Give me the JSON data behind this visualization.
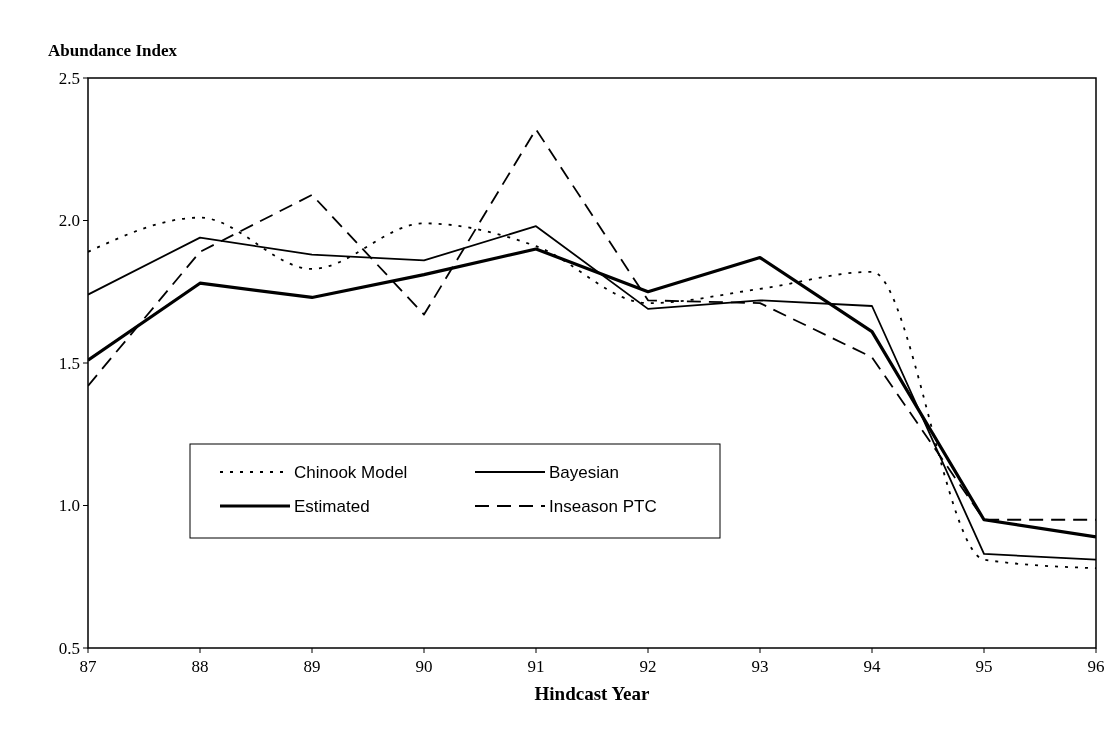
{
  "chart_data": {
    "type": "line",
    "xlabel": "Hindcast Year",
    "ylabel": "Abundance Index",
    "x": [
      87,
      88,
      89,
      90,
      91,
      92,
      93,
      94,
      95,
      96
    ],
    "xlim": [
      87,
      96
    ],
    "xticks": [
      87,
      88,
      89,
      90,
      91,
      92,
      93,
      94,
      95,
      96
    ],
    "ylim": [
      0.5,
      2.5
    ],
    "yticks": [
      {
        "value": 0.5,
        "label": "0.5"
      },
      {
        "value": 1,
        "label": "1.0"
      },
      {
        "value": 1.5,
        "label": "1.5"
      },
      {
        "value": 2,
        "label": "2.0"
      },
      {
        "value": 2.5,
        "label": "2.5"
      }
    ],
    "grid": false,
    "legend": "bottom left",
    "marker": "none",
    "series": [
      {
        "name": "Chinook Model",
        "color": "#000000",
        "line_style": "dotted",
        "values": [
          1.89,
          2.01,
          1.83,
          1.99,
          1.91,
          1.71,
          1.76,
          1.82,
          0.81,
          0.78
        ]
      },
      {
        "name": "Bayesian",
        "color": "#000000",
        "line_style": "solid",
        "values": [
          1.74,
          1.94,
          1.88,
          1.86,
          1.98,
          1.69,
          1.72,
          1.7,
          0.83,
          0.81
        ]
      },
      {
        "name": "Estimated",
        "color": "#000000",
        "line_style": "solid",
        "values": [
          1.51,
          1.78,
          1.73,
          1.81,
          1.9,
          1.75,
          1.87,
          1.61,
          0.95,
          0.89
        ]
      },
      {
        "name": "Inseason PTC",
        "color": "#000000",
        "line_style": "dashed",
        "values": [
          1.42,
          1.89,
          2.09,
          1.67,
          2.32,
          1.72,
          1.71,
          1.52,
          0.95,
          0.95
        ]
      }
    ]
  }
}
